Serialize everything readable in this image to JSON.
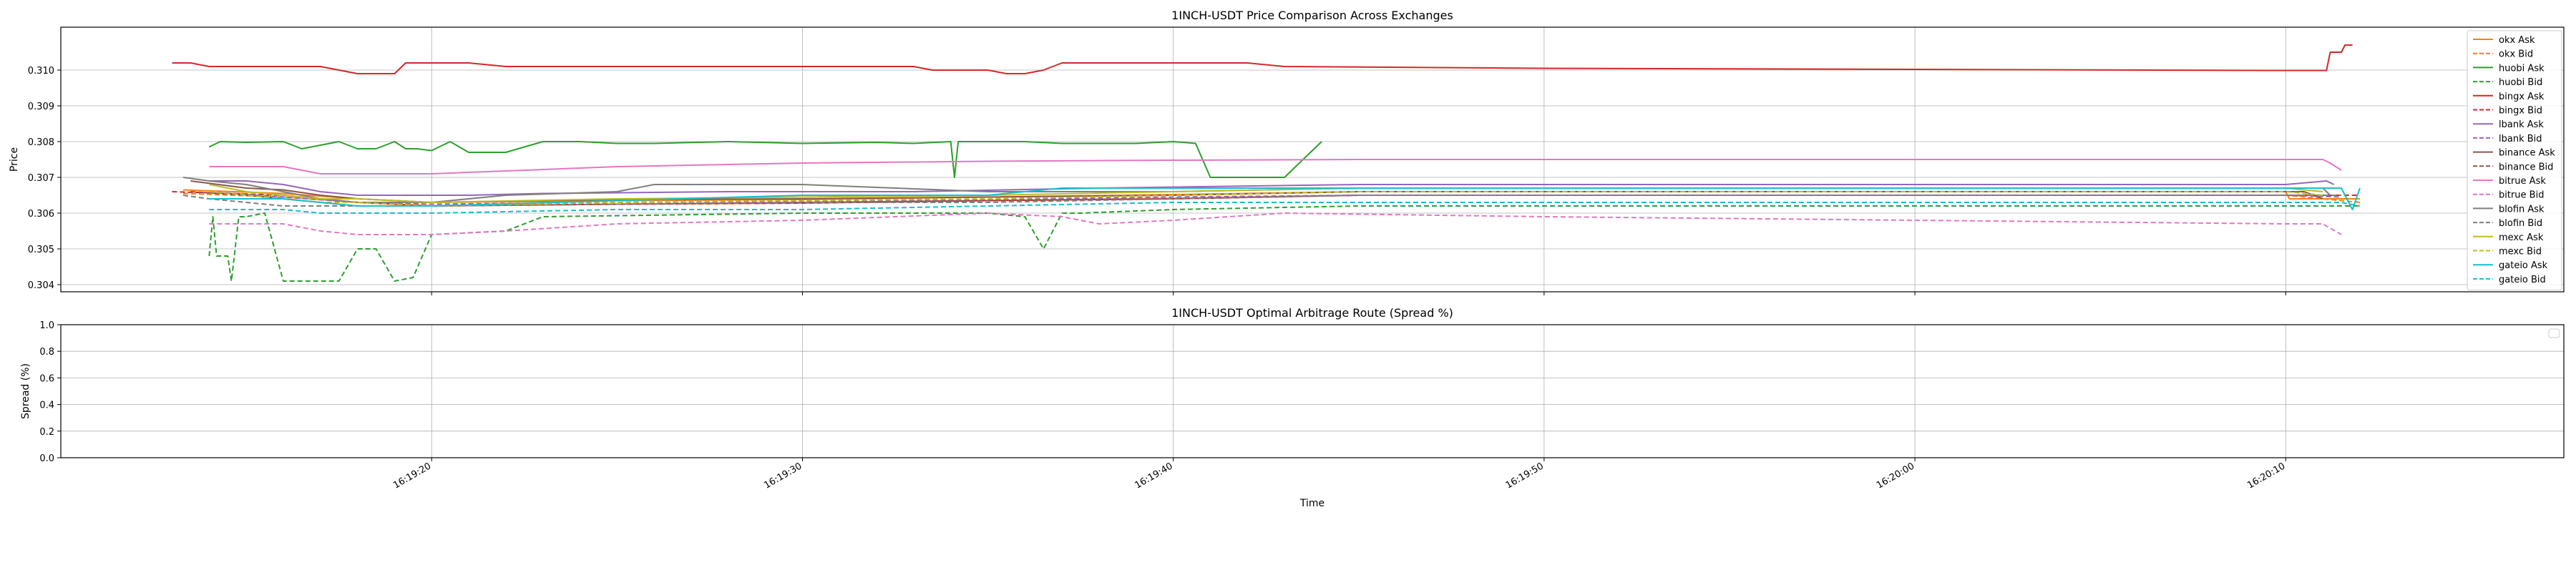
{
  "chart_data": [
    {
      "type": "line",
      "title": "1INCH-USDT Price Comparison Across Exchanges",
      "xlabel": "",
      "ylabel": "Price",
      "ylim": [
        0.3038,
        0.3112
      ],
      "yticks": [
        0.304,
        0.305,
        0.306,
        0.307,
        0.308,
        0.309,
        0.31
      ],
      "ytick_labels": [
        "0.304",
        "0.305",
        "0.306",
        "0.307",
        "0.308",
        "0.309",
        "0.310"
      ],
      "grid": true,
      "legend_position": "right",
      "series": [
        {
          "name": "okx Ask",
          "color": "#ff7f0e",
          "dash": "solid",
          "x": [
            13.3,
            16.0,
            18.0,
            20.0,
            25.0,
            30.0,
            35.0,
            40.0,
            45.0,
            55.0,
            65.0,
            70.0,
            70.1,
            72.0
          ],
          "y": [
            0.30665,
            0.30655,
            0.3064,
            0.3063,
            0.30635,
            0.30638,
            0.30645,
            0.30652,
            0.3066,
            0.3066,
            0.3066,
            0.3066,
            0.3064,
            0.3064
          ]
        },
        {
          "name": "okx Bid",
          "color": "#ff7f0e",
          "dash": "dashed",
          "x": [
            13.3,
            16.0,
            18.0,
            20.0,
            25.0,
            30.0,
            35.0,
            40.0,
            45.0,
            55.0,
            65.0,
            70.0,
            72.0
          ],
          "y": [
            0.30655,
            0.30645,
            0.3063,
            0.3062,
            0.30625,
            0.30628,
            0.30635,
            0.30642,
            0.3065,
            0.3065,
            0.3065,
            0.3065,
            0.3063
          ]
        },
        {
          "name": "huobi Ask",
          "color": "#2ca02c",
          "dash": "solid",
          "x": [
            14.0,
            14.3,
            15.0,
            16.0,
            16.5,
            17.0,
            17.5,
            18.0,
            18.5,
            19.0,
            19.3,
            19.6,
            20.0,
            20.5,
            21.0,
            21.5,
            22.0,
            23.0,
            24.0,
            25.0,
            26.0,
            28.0,
            30.0,
            32.0,
            33.0,
            34.0,
            34.1,
            34.2,
            35.0,
            36.0,
            37.0,
            38.0,
            39.0,
            40.0,
            40.6,
            41.0,
            42.0,
            43.0,
            44.0
          ],
          "y": [
            0.30785,
            0.308,
            0.30798,
            0.308,
            0.3078,
            0.3079,
            0.308,
            0.3078,
            0.3078,
            0.308,
            0.3078,
            0.3078,
            0.30775,
            0.308,
            0.3077,
            0.3077,
            0.3077,
            0.308,
            0.308,
            0.30795,
            0.30795,
            0.308,
            0.30795,
            0.30798,
            0.30795,
            0.308,
            0.307,
            0.308,
            0.308,
            0.308,
            0.30795,
            0.30795,
            0.30795,
            0.308,
            0.30795,
            0.307,
            0.307,
            0.307,
            0.308
          ]
        },
        {
          "name": "huobi Bid",
          "color": "#2ca02c",
          "dash": "dashed",
          "x": [
            14.0,
            14.1,
            14.2,
            14.5,
            14.6,
            14.8,
            15.0,
            15.5,
            16.0,
            16.5,
            17.0,
            17.5,
            18.0,
            18.5,
            19.0,
            19.5,
            20.0,
            22.0,
            23.0,
            30.0,
            35.0,
            36.0,
            36.5,
            37.0,
            37.5,
            40.0,
            45.0,
            50.0,
            60.0,
            70.0,
            72.0
          ],
          "y": [
            0.3048,
            0.3059,
            0.3048,
            0.3048,
            0.3041,
            0.3059,
            0.3059,
            0.306,
            0.3041,
            0.3041,
            0.3041,
            0.3041,
            0.305,
            0.305,
            0.3041,
            0.3042,
            0.3054,
            0.3055,
            0.3059,
            0.306,
            0.306,
            0.3059,
            0.305,
            0.306,
            0.306,
            0.3061,
            0.3062,
            0.3062,
            0.3062,
            0.3062,
            0.3062
          ]
        },
        {
          "name": "bingx Ask",
          "color": "#d62728",
          "dash": "solid",
          "x": [
            13.0,
            13.5,
            14.0,
            14.5,
            15.0,
            16.0,
            17.0,
            18.0,
            18.5,
            19.0,
            19.3,
            20.0,
            20.5,
            21.0,
            22.0,
            25.0,
            30.0,
            33.0,
            33.5,
            34.0,
            35.0,
            35.5,
            36.0,
            36.5,
            37.0,
            38.0,
            40.0,
            42.0,
            43.0,
            50.0,
            60.0,
            70.0,
            71.1,
            71.2,
            71.5,
            71.6,
            71.8
          ],
          "y": [
            0.3102,
            0.3102,
            0.3101,
            0.3101,
            0.3101,
            0.3101,
            0.3101,
            0.3099,
            0.3099,
            0.3099,
            0.3102,
            0.3102,
            0.3102,
            0.3102,
            0.3101,
            0.3101,
            0.3101,
            0.3101,
            0.31,
            0.31,
            0.31,
            0.3099,
            0.3099,
            0.31,
            0.3102,
            0.3102,
            0.3102,
            0.3102,
            0.3101,
            0.31005,
            0.31002,
            0.30999,
            0.30999,
            0.3105,
            0.3105,
            0.3107,
            0.3107
          ]
        },
        {
          "name": "bingx Bid",
          "color": "#d62728",
          "dash": "dashed",
          "x": [
            13.0,
            16.0,
            18.0,
            20.0,
            25.0,
            30.0,
            35.0,
            40.0,
            45.0,
            55.0,
            65.0,
            70.0,
            72.0
          ],
          "y": [
            0.3066,
            0.3065,
            0.3063,
            0.3062,
            0.30625,
            0.30628,
            0.30635,
            0.3064,
            0.3065,
            0.3065,
            0.3065,
            0.3065,
            0.3065
          ]
        },
        {
          "name": "lbank Ask",
          "color": "#9467bd",
          "dash": "solid",
          "x": [
            14.0,
            15.0,
            16.0,
            17.0,
            18.0,
            19.0,
            21.0,
            23.0,
            28.0,
            33.0,
            38.0,
            45.0,
            55.0,
            65.0,
            70.0,
            71.1,
            71.3
          ],
          "y": [
            0.3069,
            0.3069,
            0.3068,
            0.3066,
            0.3065,
            0.3065,
            0.3065,
            0.30655,
            0.3066,
            0.3066,
            0.3067,
            0.3068,
            0.3068,
            0.3068,
            0.3068,
            0.3069,
            0.3068
          ]
        },
        {
          "name": "lbank Bid",
          "color": "#9467bd",
          "dash": "dashed",
          "x": [
            14.0,
            16.0,
            18.0,
            20.0,
            25.0,
            30.0,
            35.0,
            40.0,
            45.0,
            55.0,
            65.0,
            70.0,
            71.5
          ],
          "y": [
            0.3066,
            0.30645,
            0.3063,
            0.30625,
            0.3063,
            0.30632,
            0.30638,
            0.30645,
            0.3065,
            0.3065,
            0.3065,
            0.3065,
            0.30645
          ]
        },
        {
          "name": "binance Ask",
          "color": "#8c564b",
          "dash": "solid",
          "x": [
            13.5,
            15.0,
            16.0,
            17.0,
            18.0,
            20.0,
            25.0,
            30.0,
            35.0,
            40.0,
            45.0,
            55.0,
            65.0,
            70.0,
            70.5,
            71.0
          ],
          "y": [
            0.3069,
            0.3067,
            0.30665,
            0.3065,
            0.3064,
            0.3063,
            0.30638,
            0.3064,
            0.30645,
            0.3065,
            0.3066,
            0.3066,
            0.3066,
            0.3066,
            0.3066,
            0.3064
          ]
        },
        {
          "name": "binance Bid",
          "color": "#8c564b",
          "dash": "dashed",
          "x": [
            13.5,
            15.0,
            16.0,
            17.0,
            18.0,
            20.0,
            25.0,
            30.0,
            35.0,
            40.0,
            45.0,
            55.0,
            65.0,
            70.0,
            71.0
          ],
          "y": [
            0.3066,
            0.3065,
            0.3064,
            0.3063,
            0.3062,
            0.3062,
            0.30625,
            0.3063,
            0.30635,
            0.3064,
            0.3065,
            0.3065,
            0.3065,
            0.3065,
            0.3065
          ]
        },
        {
          "name": "bitrue Ask",
          "color": "#e377c2",
          "dash": "solid",
          "x": [
            14.0,
            15.0,
            16.0,
            17.0,
            18.0,
            20.0,
            25.0,
            30.0,
            35.0,
            40.0,
            45.0,
            55.0,
            65.0,
            70.0,
            71.0,
            71.2,
            71.5
          ],
          "y": [
            0.3073,
            0.3073,
            0.3073,
            0.3071,
            0.3071,
            0.3071,
            0.3073,
            0.3074,
            0.30745,
            0.30748,
            0.3075,
            0.3075,
            0.3075,
            0.3075,
            0.3075,
            0.3074,
            0.3072
          ]
        },
        {
          "name": "bitrue Bid",
          "color": "#e377c2",
          "dash": "dashed",
          "x": [
            14.0,
            15.0,
            16.0,
            17.0,
            18.0,
            20.0,
            22.0,
            25.0,
            30.0,
            35.0,
            37.0,
            38.0,
            40.0,
            43.0,
            50.0,
            60.0,
            70.0,
            71.0,
            71.5
          ],
          "y": [
            0.3057,
            0.3057,
            0.3057,
            0.3055,
            0.3054,
            0.3054,
            0.3055,
            0.3057,
            0.3058,
            0.306,
            0.3059,
            0.3057,
            0.3058,
            0.306,
            0.3059,
            0.3058,
            0.3057,
            0.3057,
            0.3054
          ]
        },
        {
          "name": "blofin Ask",
          "color": "#7f7f7f",
          "dash": "solid",
          "x": [
            13.3,
            14.0,
            15.0,
            16.0,
            17.0,
            18.0,
            20.0,
            22.0,
            25.0,
            26.0,
            30.0,
            35.0,
            40.0,
            45.0,
            55.0,
            65.0,
            70.0,
            71.0,
            71.2
          ],
          "y": [
            0.307,
            0.3069,
            0.3068,
            0.3066,
            0.3064,
            0.3063,
            0.3063,
            0.3065,
            0.3066,
            0.3068,
            0.3068,
            0.3066,
            0.3066,
            0.3067,
            0.3067,
            0.3067,
            0.3067,
            0.3067,
            0.3065
          ]
        },
        {
          "name": "blofin Bid",
          "color": "#7f7f7f",
          "dash": "dashed",
          "x": [
            13.3,
            14.0,
            15.0,
            16.0,
            18.0,
            20.0,
            25.0,
            30.0,
            35.0,
            40.0,
            45.0,
            55.0,
            65.0,
            70.0,
            71.5
          ],
          "y": [
            0.3065,
            0.3064,
            0.3063,
            0.3062,
            0.3062,
            0.3062,
            0.30625,
            0.3063,
            0.3063,
            0.3064,
            0.3065,
            0.3065,
            0.3065,
            0.3065,
            0.3065
          ]
        },
        {
          "name": "mexc Ask",
          "color": "#bcbd22",
          "dash": "solid",
          "x": [
            14.0,
            15.0,
            16.0,
            17.0,
            18.0,
            20.0,
            25.0,
            30.0,
            35.0,
            40.0,
            45.0,
            55.0,
            65.0,
            70.0,
            71.0
          ],
          "y": [
            0.3068,
            0.3066,
            0.3065,
            0.3064,
            0.3064,
            0.3063,
            0.3064,
            0.30645,
            0.3065,
            0.3066,
            0.3067,
            0.3067,
            0.3067,
            0.3067,
            0.3066
          ]
        },
        {
          "name": "mexc Bid",
          "color": "#bcbd22",
          "dash": "dashed",
          "x": [
            14.0,
            15.0,
            16.0,
            17.0,
            18.0,
            20.0,
            25.0,
            30.0,
            35.0,
            40.0,
            45.0,
            55.0,
            65.0,
            70.0,
            71.0
          ],
          "y": [
            0.3066,
            0.3065,
            0.3064,
            0.3063,
            0.3063,
            0.3062,
            0.3063,
            0.30635,
            0.3064,
            0.3065,
            0.3066,
            0.3066,
            0.3066,
            0.3066,
            0.3065
          ]
        },
        {
          "name": "gateio Ask",
          "color": "#17becf",
          "dash": "solid",
          "x": [
            14.0,
            15.0,
            16.0,
            17.0,
            18.0,
            20.0,
            25.0,
            30.0,
            35.0,
            37.0,
            40.0,
            45.0,
            55.0,
            65.0,
            70.0,
            71.5,
            71.8,
            72.0
          ],
          "y": [
            0.3064,
            0.3064,
            0.3064,
            0.3063,
            0.3062,
            0.3062,
            0.30635,
            0.3065,
            0.3065,
            0.3067,
            0.3067,
            0.3067,
            0.3067,
            0.3067,
            0.3067,
            0.3067,
            0.3061,
            0.3067
          ]
        },
        {
          "name": "gateio Bid",
          "color": "#17becf",
          "dash": "dashed",
          "x": [
            14.0,
            15.0,
            16.0,
            17.0,
            18.0,
            20.0,
            25.0,
            30.0,
            35.0,
            40.0,
            45.0,
            55.0,
            65.0,
            70.0,
            71.5,
            72.0
          ],
          "y": [
            0.3061,
            0.3061,
            0.3061,
            0.306,
            0.306,
            0.306,
            0.3061,
            0.3061,
            0.3062,
            0.3063,
            0.3063,
            0.3063,
            0.3063,
            0.3063,
            0.3063,
            0.3062
          ]
        }
      ]
    },
    {
      "type": "line",
      "title": "1INCH-USDT Optimal Arbitrage Route (Spread %)",
      "xlabel": "Time",
      "ylabel": "Spread (%)",
      "ylim": [
        0.0,
        1.0
      ],
      "yticks": [
        0.0,
        0.2,
        0.4,
        0.6,
        0.8,
        1.0
      ],
      "ytick_labels": [
        "0.0",
        "0.2",
        "0.4",
        "0.6",
        "0.8",
        "1.0"
      ],
      "xlim": [
        10.0,
        77.5
      ],
      "xticks": [
        20,
        30,
        40,
        50,
        60,
        70
      ],
      "xtick_labels": [
        "16:19:20",
        "16:19:30",
        "16:19:40",
        "16:19:50",
        "16:20:00",
        "16:20:10"
      ],
      "grid": true,
      "legend_position": "top-right",
      "series": []
    }
  ]
}
